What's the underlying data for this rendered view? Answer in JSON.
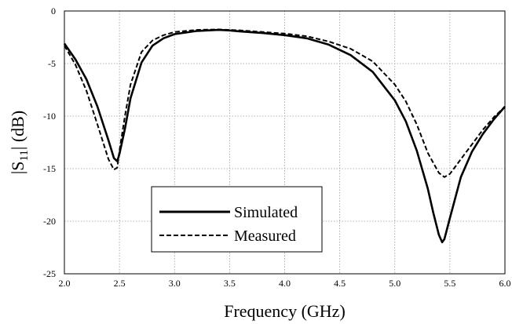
{
  "chart_data": {
    "type": "line",
    "title": "",
    "xlabel": "Frequency (GHz)",
    "ylabel": {
      "prefix": "|S",
      "sub": "11",
      "suffix": "| (dB)"
    },
    "xlim": [
      2.0,
      6.0
    ],
    "ylim": [
      -25,
      0
    ],
    "x_ticks": [
      "2.0",
      "2.5",
      "3.0",
      "3.5",
      "4.0",
      "4.5",
      "5.0",
      "5.5",
      "6.0"
    ],
    "y_ticks": [
      "0",
      "-5",
      "-10",
      "-15",
      "-20",
      "-25"
    ],
    "grid": true,
    "legend": {
      "placement": "bottom-center"
    },
    "series": [
      {
        "name": "Simulated",
        "style": "solid",
        "color": "#000000",
        "x": [
          2.0,
          2.1,
          2.2,
          2.3,
          2.4,
          2.45,
          2.48,
          2.5,
          2.55,
          2.6,
          2.7,
          2.8,
          2.9,
          3.0,
          3.2,
          3.4,
          3.5,
          3.6,
          3.8,
          4.0,
          4.2,
          4.4,
          4.6,
          4.8,
          5.0,
          5.1,
          5.2,
          5.3,
          5.35,
          5.4,
          5.43,
          5.45,
          5.5,
          5.6,
          5.7,
          5.8,
          5.9,
          6.0
        ],
        "y": [
          -3.1,
          -4.6,
          -6.5,
          -9.1,
          -12.3,
          -14.0,
          -14.3,
          -13.6,
          -11.2,
          -8.3,
          -4.9,
          -3.3,
          -2.6,
          -2.2,
          -1.9,
          -1.8,
          -1.85,
          -1.95,
          -2.1,
          -2.3,
          -2.6,
          -3.2,
          -4.2,
          -5.8,
          -8.5,
          -10.5,
          -13.3,
          -16.9,
          -19.2,
          -21.3,
          -22.0,
          -21.7,
          -19.7,
          -15.8,
          -13.4,
          -11.7,
          -10.3,
          -9.1
        ]
      },
      {
        "name": "Measured",
        "style": "dashed",
        "color": "#000000",
        "x": [
          2.0,
          2.1,
          2.2,
          2.3,
          2.4,
          2.45,
          2.48,
          2.5,
          2.55,
          2.6,
          2.7,
          2.8,
          2.9,
          3.0,
          3.2,
          3.4,
          3.5,
          3.6,
          3.8,
          4.0,
          4.2,
          4.4,
          4.6,
          4.8,
          5.0,
          5.1,
          5.2,
          5.3,
          5.4,
          5.45,
          5.5,
          5.6,
          5.7,
          5.8,
          5.9,
          6.0
        ],
        "y": [
          -3.3,
          -5.1,
          -7.6,
          -10.8,
          -14.1,
          -15.1,
          -14.9,
          -13.3,
          -10.0,
          -7.0,
          -3.9,
          -2.8,
          -2.3,
          -2.0,
          -1.8,
          -1.75,
          -1.8,
          -1.85,
          -2.0,
          -2.15,
          -2.4,
          -2.9,
          -3.6,
          -4.8,
          -7.0,
          -8.6,
          -10.8,
          -13.5,
          -15.4,
          -15.8,
          -15.5,
          -14.1,
          -12.7,
          -11.3,
          -10.1,
          -9.1
        ]
      }
    ]
  }
}
